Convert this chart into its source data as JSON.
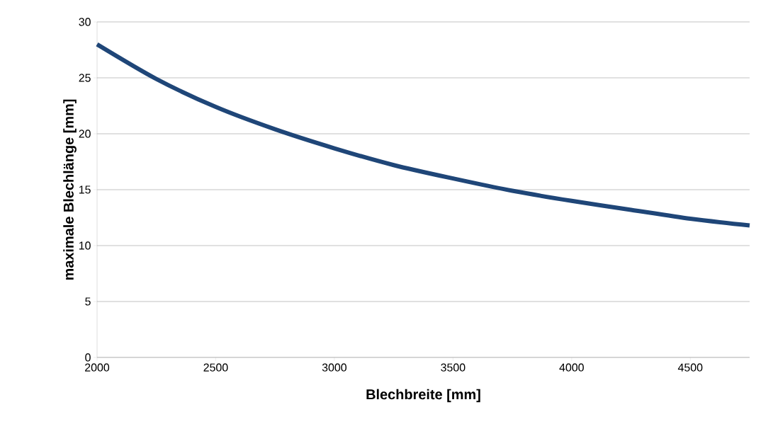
{
  "chart_data": {
    "type": "line",
    "xlabel": "Blechbreite [mm]",
    "ylabel": "maximale Blechlänge [mm]",
    "x": [
      2000,
      2250,
      2500,
      2750,
      3000,
      3250,
      3500,
      3750,
      4000,
      4250,
      4500,
      4750
    ],
    "series": [
      {
        "color": "#1f4678",
        "values": [
          28,
          24.9,
          22.4,
          20.4,
          18.7,
          17.2,
          16,
          14.9,
          14,
          13.2,
          12.4,
          11.8
        ]
      }
    ],
    "xlim": [
      2000,
      4750
    ],
    "xticks": [
      2000,
      2500,
      3000,
      3500,
      4000,
      4500
    ],
    "ylim": [
      0,
      30
    ],
    "yticks": [
      0,
      5,
      10,
      15,
      20,
      25,
      30
    ],
    "grid": "y",
    "marker": "none",
    "line_style": "solid"
  }
}
